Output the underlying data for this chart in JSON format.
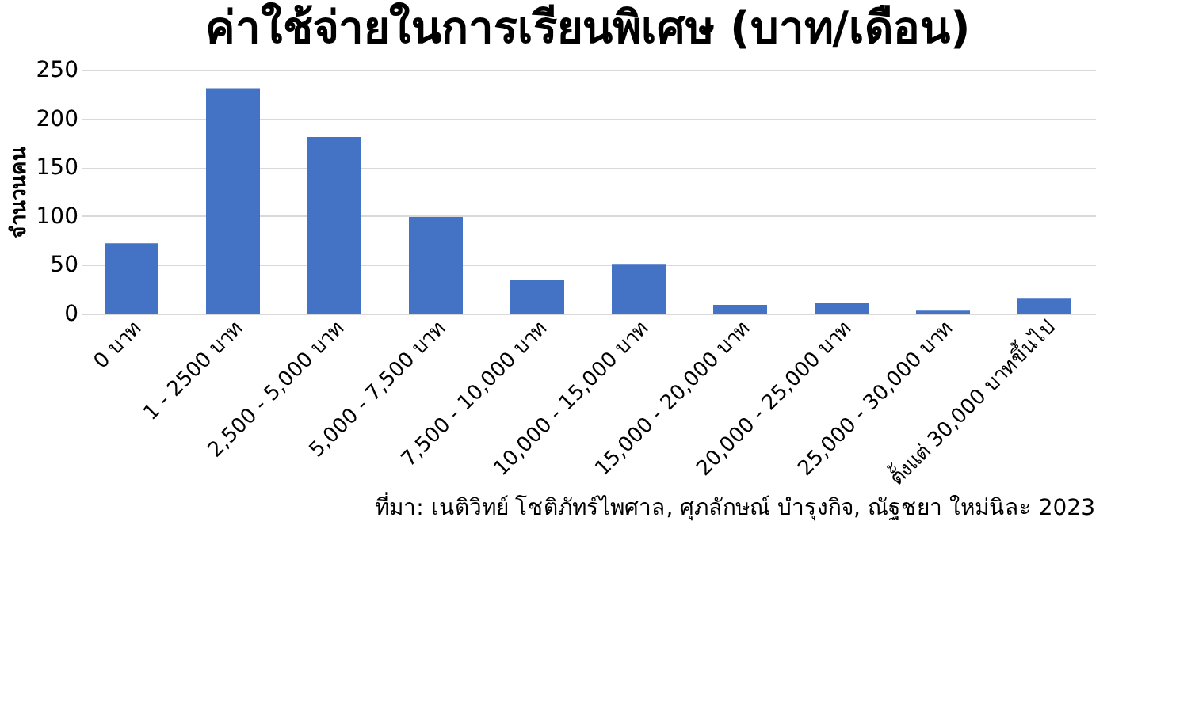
{
  "chart_data": {
    "type": "bar",
    "title": "ค่าใช้จ่ายในการเรียนพิเศษ (บาท/เดือน)",
    "ylabel": "จำนวนคน",
    "categories": [
      "0 บาท",
      "1 - 2500 บาท",
      "2,500 - 5,000 บาท",
      "5,000 - 7,500 บาท",
      "7,500 - 10,000 บาท",
      "10,000 - 15,000 บาท",
      "15,000 - 20,000 บาท",
      "20,000 - 25,000 บาท",
      "25,000 - 30,000 บาท",
      "ตั้งแต่ 30,000 บาทขึ้นไป"
    ],
    "values": [
      72,
      231,
      181,
      99,
      35,
      51,
      9,
      11,
      3,
      16
    ],
    "color": "#4472c4",
    "ylim": [
      0,
      250
    ],
    "yticks": [
      0,
      50,
      100,
      150,
      200,
      250
    ],
    "grid": "y",
    "annotations": [
      "ที่มา: เนติวิทย์ โชติภัทร์ไพศาล, ศุภลักษณ์ บำรุงกิจ, ณัฐชยา ใหม่นิละ 2023"
    ]
  }
}
